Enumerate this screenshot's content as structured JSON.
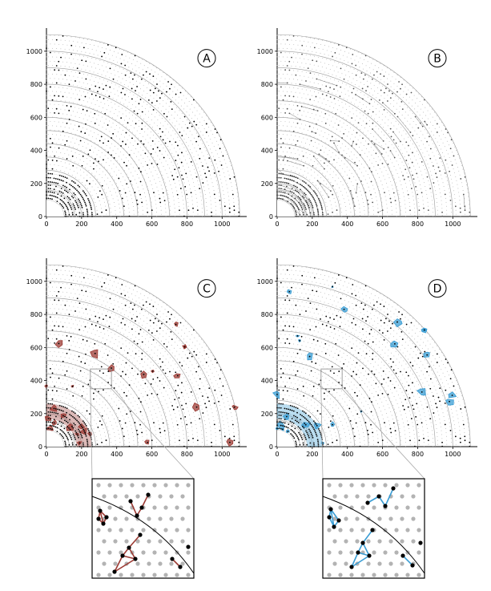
{
  "panels": [
    {
      "id": "A",
      "label": "A",
      "variant": "points"
    },
    {
      "id": "B",
      "label": "B",
      "variant": "graph"
    },
    {
      "id": "C",
      "label": "C",
      "variant": "clusters",
      "cluster_color": "#9c3a33"
    },
    {
      "id": "D",
      "label": "D",
      "variant": "clusters",
      "cluster_color": "#3a9dd4"
    }
  ],
  "axes": {
    "x_ticks": [
      0,
      200,
      400,
      600,
      800,
      1000
    ],
    "y_ticks": [
      0,
      200,
      400,
      600,
      800,
      1000
    ],
    "range": [
      0,
      1140
    ]
  },
  "colors": {
    "grid_dot": "#a9a9a9",
    "point": "#000000",
    "ring": "#999999",
    "edge": "#777777",
    "node_fill_b": "#bbbbbb"
  },
  "insets": [
    {
      "id": "C-inset",
      "panel": "C",
      "edge_color": "#9c3a33"
    },
    {
      "id": "D-inset",
      "panel": "D",
      "edge_color": "#3a9dd4"
    }
  ]
}
